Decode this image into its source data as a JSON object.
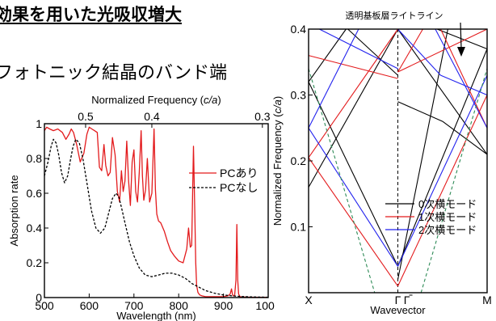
{
  "heading": "効果を用いた光吸収増大",
  "subheading": "フォトニック結晶のバンド端",
  "chart_data": [
    {
      "type": "line",
      "x_axis_label": "Wavelength (nm)",
      "y_axis_label": "Absorption rate",
      "top_axis_label_parts": [
        "Normalized Frequency (",
        "c/a",
        ")"
      ],
      "xlim": [
        500,
        1000
      ],
      "ylim": [
        0,
        1
      ],
      "x_ticks": [
        "500",
        "600",
        "700",
        "800",
        "900",
        "1000"
      ],
      "y_ticks": [
        "0",
        "0.2",
        "0.4",
        "0.6",
        "0.8",
        "1"
      ],
      "top_ticks": [
        {
          "label": "0.5",
          "x": 592
        },
        {
          "label": "0.4",
          "x": 740
        },
        {
          "label": "0.3",
          "x": 987
        }
      ],
      "series": [
        {
          "name": "PCあり",
          "color": "#e31a1c",
          "dash": "solid",
          "x": [
            500,
            505,
            512,
            520,
            530,
            540,
            548,
            555,
            560,
            565,
            572,
            580,
            588,
            595,
            600,
            606,
            612,
            618,
            623,
            628,
            633,
            637,
            642,
            647,
            652,
            658,
            663,
            668,
            672,
            676,
            680,
            684,
            688,
            692,
            696,
            700,
            704,
            708,
            712,
            716,
            719,
            722,
            726,
            730,
            735,
            740,
            745,
            748,
            751,
            755,
            760,
            768,
            775,
            782,
            790,
            800,
            810,
            818,
            822,
            826,
            829,
            833,
            836,
            838,
            840,
            843,
            847,
            852,
            860,
            870,
            880,
            890,
            900,
            910,
            915,
            918,
            920,
            922,
            925,
            928,
            930,
            932,
            934,
            937,
            942,
            950,
            960,
            975,
            990,
            1000
          ],
          "y": [
            0.96,
            0.98,
            0.97,
            0.96,
            0.97,
            0.95,
            0.91,
            0.94,
            0.97,
            0.95,
            0.88,
            0.78,
            0.83,
            0.94,
            0.98,
            0.97,
            0.96,
            0.95,
            0.75,
            0.73,
            0.88,
            0.76,
            0.7,
            0.72,
            0.92,
            0.82,
            0.61,
            0.55,
            0.73,
            0.61,
            0.67,
            0.9,
            0.67,
            0.53,
            0.78,
            0.85,
            0.61,
            0.55,
            0.72,
            0.96,
            0.7,
            0.56,
            0.62,
            0.8,
            0.55,
            0.6,
            0.97,
            0.62,
            0.48,
            0.44,
            0.43,
            0.38,
            0.32,
            0.27,
            0.24,
            0.21,
            0.2,
            0.28,
            0.4,
            0.29,
            0.3,
            0.87,
            0.5,
            0.2,
            0.07,
            0.03,
            0.015,
            0.01,
            0.005,
            0.005,
            0.005,
            0.005,
            0.005,
            0.01,
            0.02,
            0.05,
            0.02,
            0.01,
            0.01,
            0.1,
            0.42,
            0.1,
            0.02,
            0.005,
            0.003,
            0.003,
            0.002,
            0.002,
            0.002,
            0.002
          ]
        },
        {
          "name": "PCなし",
          "color": "#000000",
          "dash": "dashed",
          "x": [
            500,
            508,
            515,
            520,
            526,
            532,
            538,
            545,
            552,
            558,
            564,
            570,
            578,
            586,
            595,
            605,
            615,
            625,
            635,
            645,
            652,
            660,
            666,
            672,
            680,
            690,
            700,
            712,
            725,
            740,
            755,
            770,
            785,
            800,
            815,
            830,
            845,
            860,
            880,
            900,
            920,
            940,
            960,
            980,
            1000
          ],
          "y": [
            0.7,
            0.78,
            0.87,
            0.91,
            0.89,
            0.82,
            0.72,
            0.66,
            0.7,
            0.79,
            0.87,
            0.91,
            0.89,
            0.8,
            0.66,
            0.5,
            0.4,
            0.37,
            0.4,
            0.5,
            0.57,
            0.6,
            0.58,
            0.52,
            0.43,
            0.32,
            0.24,
            0.17,
            0.13,
            0.12,
            0.13,
            0.14,
            0.14,
            0.13,
            0.11,
            0.08,
            0.06,
            0.04,
            0.025,
            0.015,
            0.01,
            0.006,
            0.004,
            0.003,
            0.002
          ]
        }
      ]
    },
    {
      "type": "line",
      "title": "透明基板層ライトライン",
      "x_axis_label": "Wavevector",
      "y_axis_label_parts": [
        "Normalized Frequency (",
        "c/a",
        ")"
      ],
      "xlim": [
        0,
        1
      ],
      "ylim": [
        0,
        0.4
      ],
      "x_ticks": [
        {
          "label": "X",
          "x": 0
        },
        {
          "label": "Γ",
          "x": 0.5
        },
        {
          "label": "M",
          "x": 1
        }
      ],
      "gamma_prime": {
        "label": "Γ",
        "x": 0.55
      },
      "y_ticks": [
        "0.1",
        "0.2",
        "0.3",
        "0.4"
      ],
      "legend_position": "right",
      "series": [
        {
          "name": "0次横モード",
          "color": "#000000",
          "lines": [
            {
              "x": [
                0,
                0.5
              ],
              "y": [
                0.32,
                0.04
              ]
            },
            {
              "x": [
                0,
                0.5
              ],
              "y": [
                0.16,
                0.4
              ]
            },
            {
              "x": [
                0,
                0.21
              ],
              "y": [
                0.32,
                0.4
              ]
            },
            {
              "x": [
                0.22,
                0.5
              ],
              "y": [
                0.4,
                0.33
              ]
            },
            {
              "x": [
                0.5,
                0.78
              ],
              "y": [
                0.02,
                0.4
              ]
            },
            {
              "x": [
                0.5,
                1.0
              ],
              "y": [
                0.4,
                0.21
              ]
            },
            {
              "x": [
                0.5,
                1.0
              ],
              "y": [
                0.04,
                0.37
              ]
            },
            {
              "x": [
                0.5,
                0.75,
                1.0
              ],
              "y": [
                0.29,
                0.26,
                0.21
              ]
            },
            {
              "x": [
                0.72,
                1.0
              ],
              "y": [
                0.4,
                0.37
              ]
            }
          ]
        },
        {
          "name": "1次横モード",
          "color": "#e31a1c",
          "lines": [
            {
              "x": [
                0,
                0.5
              ],
              "y": [
                0.205,
                0.4
              ]
            },
            {
              "x": [
                0,
                0.5
              ],
              "y": [
                0.36,
                0.325
              ]
            },
            {
              "x": [
                0,
                0.5
              ],
              "y": [
                0.205,
                0.01
              ]
            },
            {
              "x": [
                0.5,
                0.64
              ],
              "y": [
                0.335,
                0.4
              ]
            },
            {
              "x": [
                0.5,
                1.0
              ],
              "y": [
                0.335,
                0.4
              ]
            },
            {
              "x": [
                0.5,
                1.0
              ],
              "y": [
                0.01,
                0.3
              ]
            },
            {
              "x": [
                0.74,
                1.0
              ],
              "y": [
                0.4,
                0.25
              ]
            }
          ]
        },
        {
          "name": "2次横モード",
          "color": "#2222ee",
          "lines": [
            {
              "x": [
                0,
                0.5
              ],
              "y": [
                0.25,
                0.04
              ]
            },
            {
              "x": [
                0,
                0.28
              ],
              "y": [
                0.25,
                0.4
              ]
            },
            {
              "x": [
                0.06,
                0.5
              ],
              "y": [
                0.4,
                0.34
              ]
            },
            {
              "x": [
                0.5,
                1.0
              ],
              "y": [
                0.04,
                0.33
              ]
            },
            {
              "x": [
                0.5,
                0.74,
                1.0
              ],
              "y": [
                0.4,
                0.33,
                0.3
              ]
            },
            {
              "x": [
                0.71,
                1.0
              ],
              "y": [
                0.4,
                0.25
              ]
            }
          ]
        },
        {
          "name": "",
          "color": "#2e8b57",
          "dash": "dashed",
          "lines": [
            {
              "x": [
                0,
                0.37
              ],
              "y": [
                0.34,
                0.0
              ]
            },
            {
              "x": [
                0.63,
                1.0
              ],
              "y": [
                0.0,
                0.34
              ]
            }
          ]
        }
      ]
    }
  ]
}
